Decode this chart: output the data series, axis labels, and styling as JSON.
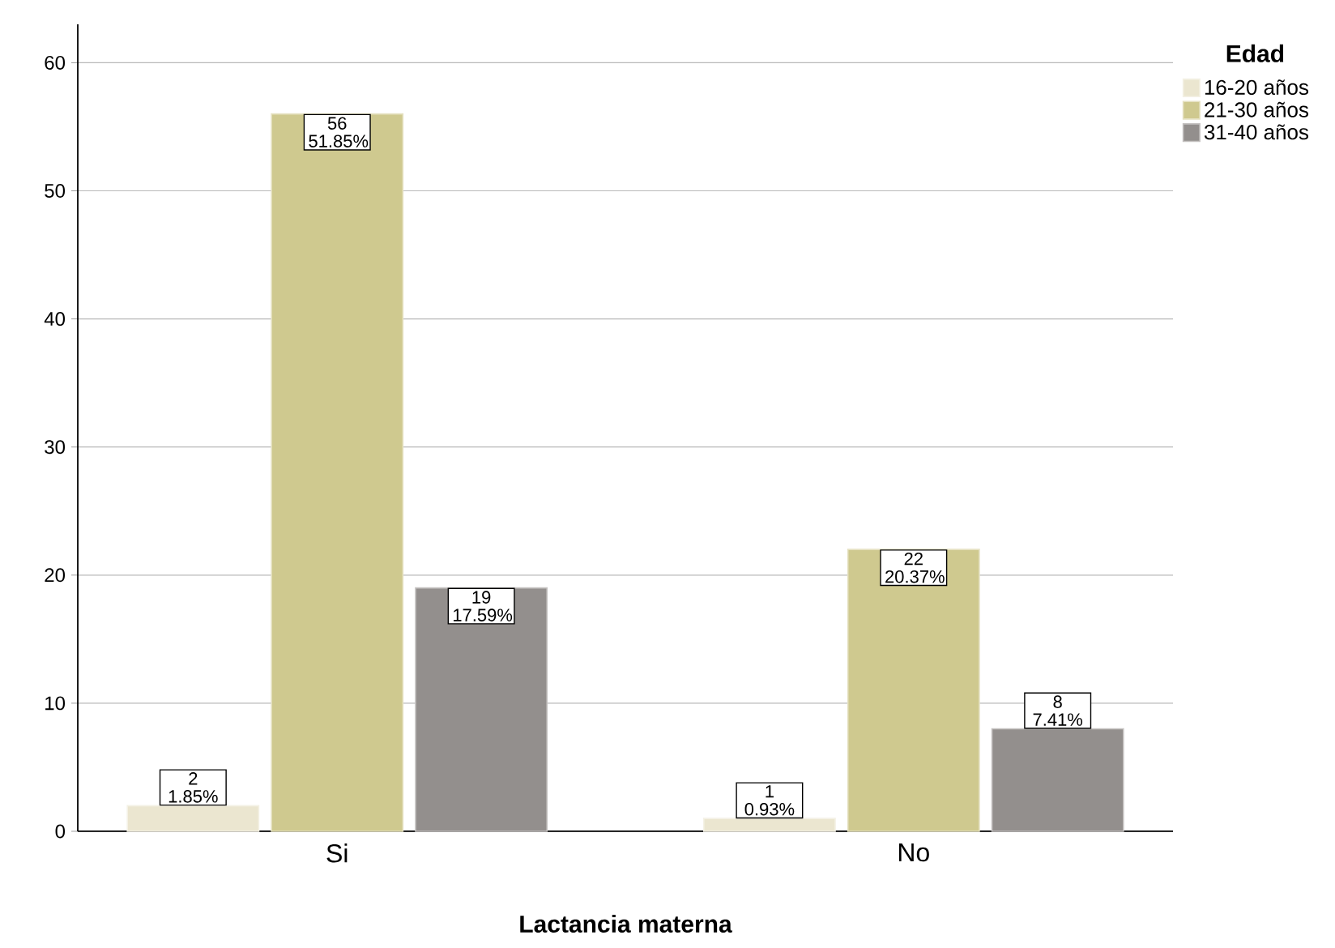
{
  "chart_data": {
    "type": "bar",
    "xlabel": "Lactancia materna",
    "legend_title": "Edad",
    "categories": [
      "Si",
      "No"
    ],
    "series": [
      {
        "name": "16-20 años",
        "color": "#ebe6d0",
        "values": [
          2,
          1
        ],
        "value_labels": [
          "2 1.85%",
          "1 0.93%"
        ]
      },
      {
        "name": "21-30 años",
        "color": "#cfc98f",
        "values": [
          56,
          22
        ],
        "value_labels": [
          "56 51.85%",
          "22 20.37%"
        ]
      },
      {
        "name": "31-40 años",
        "color": "#938f8d",
        "values": [
          19,
          8
        ],
        "value_labels": [
          "19 17.59%",
          "8 7.41%"
        ]
      }
    ],
    "ylim": [
      0,
      63
    ],
    "yticks": [
      0,
      10,
      20,
      30,
      40,
      50,
      60
    ],
    "grid": "y",
    "legend": "top right"
  }
}
